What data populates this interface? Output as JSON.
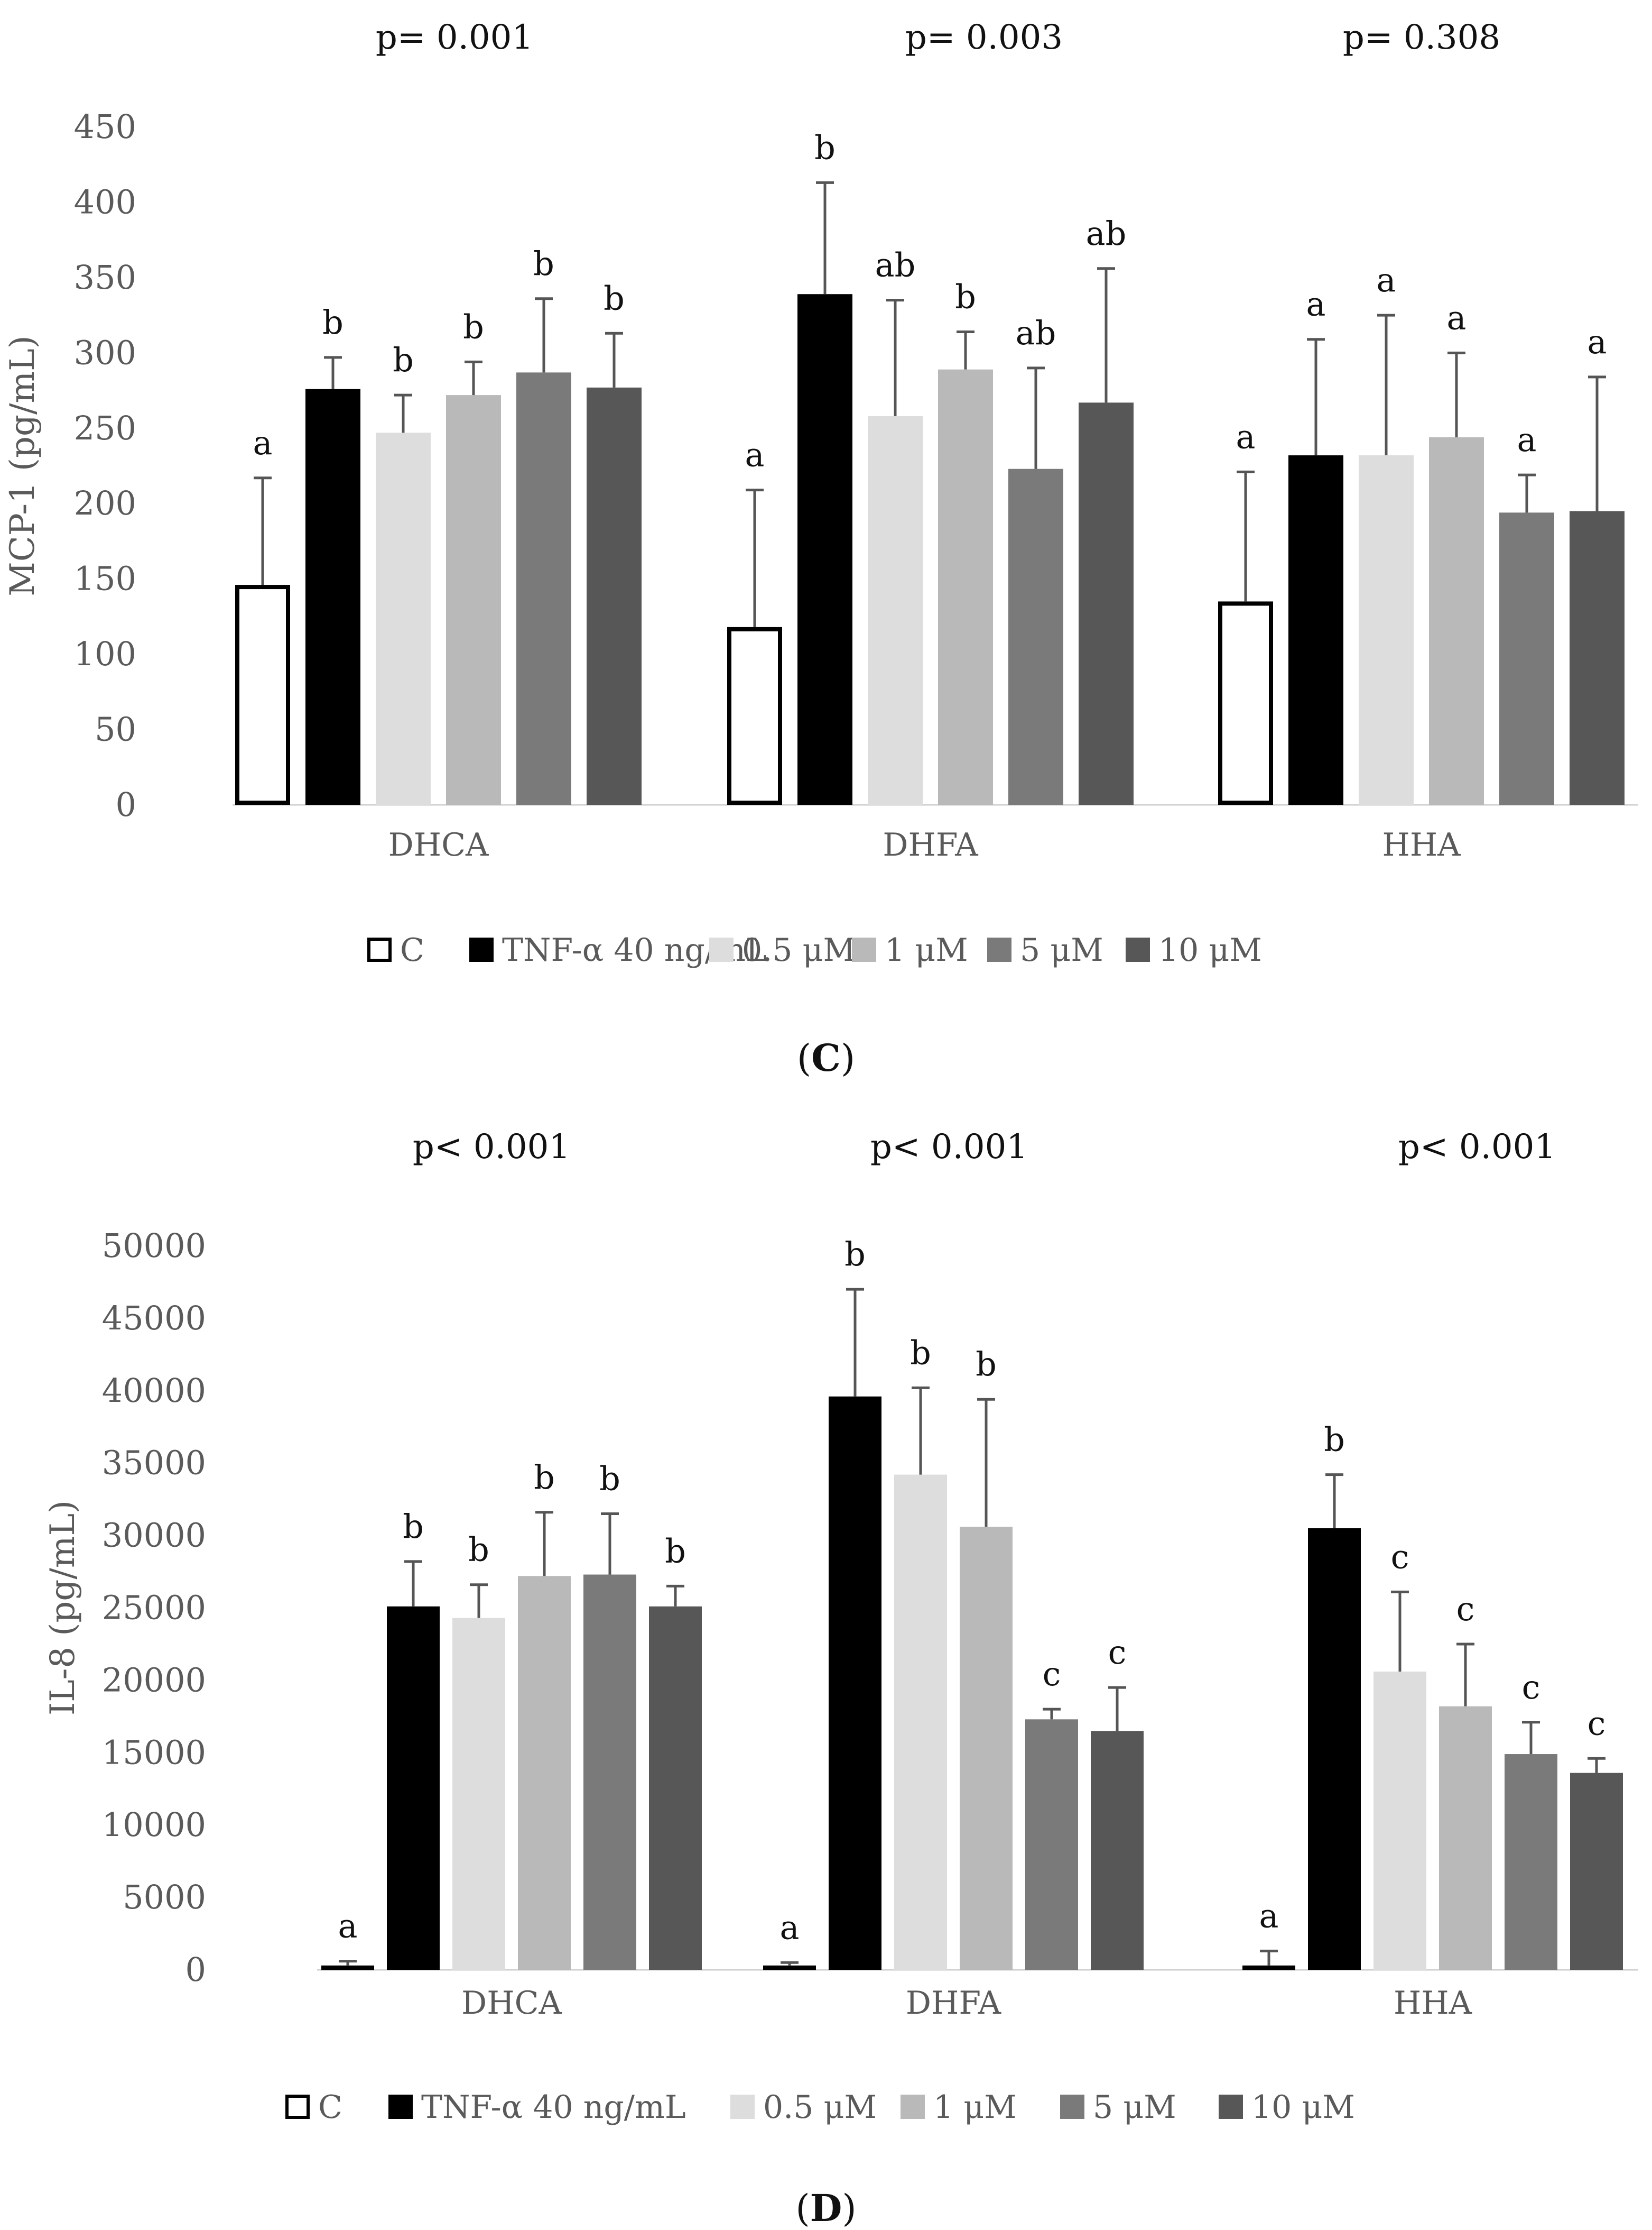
{
  "series": [
    {
      "name": "C",
      "fill": "#ffffff",
      "stroke": "#000000"
    },
    {
      "name": "TNF-α 40 ng/mL",
      "fill": "#000000",
      "stroke": "#000000"
    },
    {
      "name": "0.5 μM",
      "fill": "#dddddd",
      "stroke": "#dddddd"
    },
    {
      "name": "1 μM",
      "fill": "#b9b9b9",
      "stroke": "#b9b9b9"
    },
    {
      "name": "5 μM",
      "fill": "#7a7a7a",
      "stroke": "#7a7a7a"
    },
    {
      "name": "10 μM",
      "fill": "#575757",
      "stroke": "#575757"
    }
  ],
  "chart_data": [
    {
      "type": "bar",
      "panel_label": "C",
      "ylabel": "MCP-1 (pg/mL)",
      "ylim": [
        0,
        450
      ],
      "yticks": [
        0,
        50,
        100,
        150,
        200,
        250,
        300,
        350,
        400,
        450
      ],
      "categories": [
        "DHCA",
        "DHFA",
        "HHA"
      ],
      "p_values": [
        "p= 0.001",
        "p= 0.003",
        "p= 0.308"
      ],
      "series": [
        {
          "name": "C",
          "values": [
            146,
            118,
            135
          ],
          "errors": [
            71,
            91,
            86
          ],
          "letters": [
            "a",
            "a",
            "a"
          ]
        },
        {
          "name": "TNF-α 40 ng/mL",
          "values": [
            276,
            339,
            232
          ],
          "errors": [
            21,
            74,
            77
          ],
          "letters": [
            "b",
            "b",
            "a"
          ]
        },
        {
          "name": "0.5 μM",
          "values": [
            247,
            258,
            232
          ],
          "errors": [
            25,
            77,
            93
          ],
          "letters": [
            "b",
            "ab",
            "a"
          ]
        },
        {
          "name": "1 μM",
          "values": [
            272,
            289,
            244
          ],
          "errors": [
            22,
            25,
            56
          ],
          "letters": [
            "b",
            "b",
            "a"
          ]
        },
        {
          "name": "5 μM",
          "values": [
            287,
            223,
            194
          ],
          "errors": [
            49,
            67,
            25
          ],
          "letters": [
            "b",
            "ab",
            "a"
          ]
        },
        {
          "name": "10 μM",
          "values": [
            277,
            267,
            195
          ],
          "errors": [
            36,
            89,
            89
          ],
          "letters": [
            "b",
            "ab",
            "a"
          ]
        }
      ]
    },
    {
      "type": "bar",
      "panel_label": "D",
      "ylabel": "IL-8 (pg/mL)",
      "ylim": [
        0,
        50000
      ],
      "yticks": [
        0,
        5000,
        10000,
        15000,
        20000,
        25000,
        30000,
        35000,
        40000,
        45000,
        50000
      ],
      "categories": [
        "DHCA",
        "DHFA",
        "HHA"
      ],
      "p_values": [
        "p< 0.001",
        "p< 0.001",
        "p< 0.001"
      ],
      "series": [
        {
          "name": "C",
          "values": [
            300,
            300,
            300
          ],
          "errors": [
            300,
            200,
            1000
          ],
          "letters": [
            "a",
            "a",
            "a"
          ]
        },
        {
          "name": "TNF-α 40 ng/mL",
          "values": [
            25100,
            39600,
            30500
          ],
          "errors": [
            3100,
            7400,
            3700
          ],
          "letters": [
            "b",
            "b",
            "b"
          ]
        },
        {
          "name": "0.5 μM",
          "values": [
            24300,
            34200,
            20600
          ],
          "errors": [
            2300,
            6000,
            5500
          ],
          "letters": [
            "b",
            "b",
            "c"
          ]
        },
        {
          "name": "1 μM",
          "values": [
            27200,
            30600,
            18200
          ],
          "errors": [
            4400,
            8800,
            4300
          ],
          "letters": [
            "b",
            "b",
            "c"
          ]
        },
        {
          "name": "5 μM",
          "values": [
            27300,
            17300,
            14900
          ],
          "errors": [
            4200,
            700,
            2200
          ],
          "letters": [
            "b",
            "c",
            "c"
          ]
        },
        {
          "name": "10 μM",
          "values": [
            25100,
            16500,
            13600
          ],
          "errors": [
            1400,
            3000,
            1000
          ],
          "letters": [
            "b",
            "c",
            "c"
          ]
        }
      ]
    }
  ]
}
